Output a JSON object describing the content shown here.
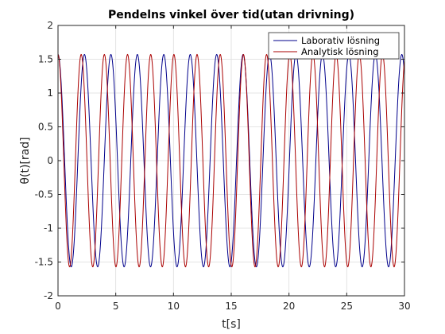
{
  "chart_data": {
    "type": "line",
    "title": "Pendelns vinkel över tid(utan drivning)",
    "xlabel": "t[s]",
    "ylabel": "θ(t)[rad]",
    "xlim": [
      0,
      30
    ],
    "ylim": [
      -2,
      2
    ],
    "xticks": [
      0,
      5,
      10,
      15,
      20,
      25,
      30
    ],
    "yticks": [
      -2,
      -1.5,
      -1,
      -0.5,
      0,
      0.5,
      1,
      1.5,
      2
    ],
    "grid": true,
    "legend_position": "top-right",
    "series": [
      {
        "name": "Laborativ lösning",
        "color": "#00008b",
        "amplitude": 1.5708,
        "period": 2.29,
        "phase": 0,
        "x_start": 0,
        "x_end": 30
      },
      {
        "name": "Analytisk lösning",
        "color": "#aa0000",
        "amplitude": 1.5708,
        "period": 2.007,
        "phase": 0,
        "x_start": 0,
        "x_end": 30
      }
    ]
  }
}
